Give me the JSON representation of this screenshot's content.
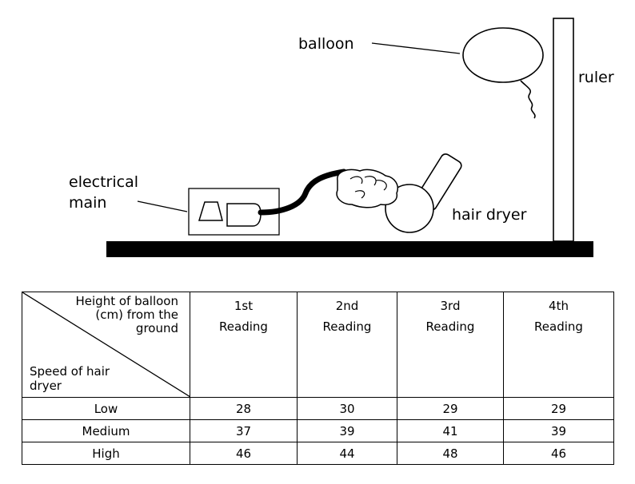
{
  "labels": {
    "balloon": "balloon",
    "ruler": "ruler",
    "electrical_main_line1": "electrical",
    "electrical_main_line2": "main",
    "hair_dryer": "hair dryer"
  },
  "table": {
    "corner_top": [
      "Height of  balloon",
      "(cm) from the",
      "ground"
    ],
    "corner_bottom": [
      "Speed of hair",
      "dryer"
    ],
    "columns": [
      {
        "line1": "1st",
        "line2": "Reading"
      },
      {
        "line1": "2nd",
        "line2": "Reading"
      },
      {
        "line1": "3rd",
        "line2": "Reading"
      },
      {
        "line1": "4th",
        "line2": "Reading"
      }
    ],
    "rows": [
      {
        "speed": "Low",
        "values": [
          "28",
          "30",
          "29",
          "29"
        ]
      },
      {
        "speed": "Medium",
        "values": [
          "37",
          "39",
          "41",
          "39"
        ]
      },
      {
        "speed": "High",
        "values": [
          "46",
          "44",
          "48",
          "46"
        ]
      }
    ]
  }
}
